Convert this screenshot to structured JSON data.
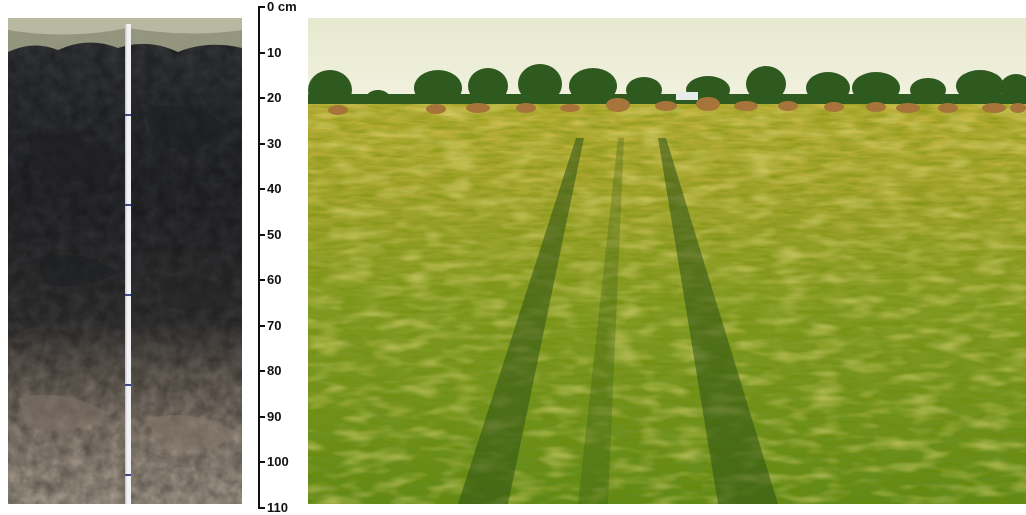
{
  "soil_profile": {
    "depth_unit": "cm",
    "tick_labels": [
      "0 cm",
      "10",
      "20",
      "30",
      "40",
      "50",
      "60",
      "70",
      "80",
      "90",
      "100",
      "110"
    ]
  },
  "photos": {
    "left": "soil-profile-photo",
    "right": "wheat-field-photo"
  },
  "colors": {
    "topsoil": "#2f3033",
    "subsoil": "#8a7c6e",
    "sky": "#eef0d9",
    "field_green": "#6f8f22",
    "field_yellow": "#c9b33f"
  }
}
